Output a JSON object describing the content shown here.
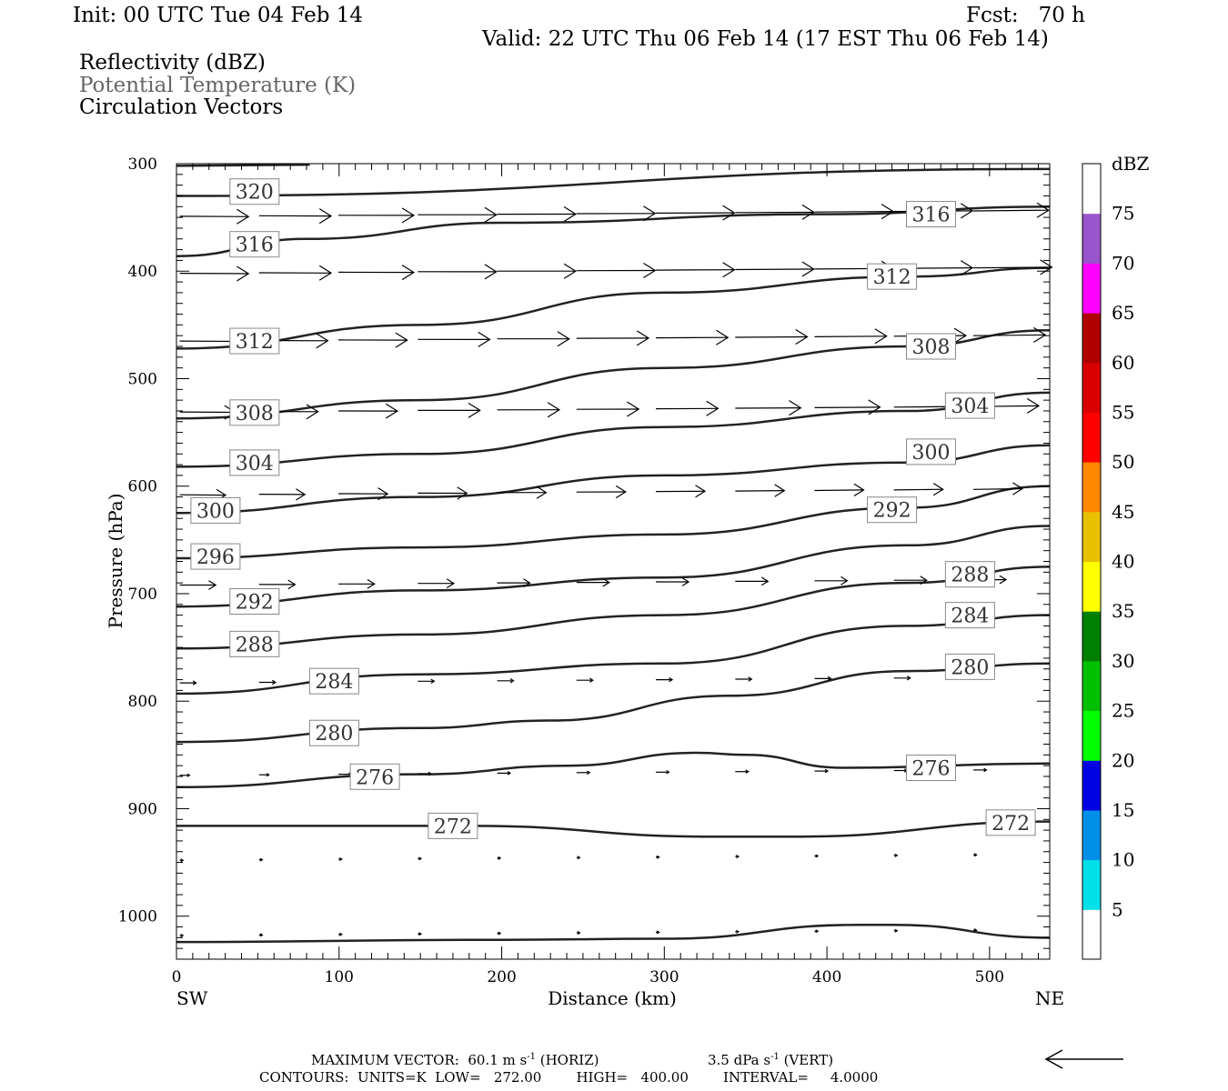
{
  "header": {
    "init": "Init: 00 UTC Tue 04 Feb 14",
    "fcst": "Fcst:   70 h",
    "valid": "Valid: 22 UTC Thu 06 Feb 14 (17 EST Thu 06 Feb 14)",
    "fields": [
      "Reflectivity (dBZ)",
      "Potential Temperature (K)",
      "Circulation Vectors"
    ]
  },
  "footer": {
    "max_vector": "MAXIMUM VECTOR:  60.1 m s",
    "horiz": " (HORIZ)",
    "vert_val": "3.5 dPa s",
    "vert": " (VERT)",
    "exp": "-1",
    "contours": "CONTOURS:  UNITS=K  LOW=   272.00        HIGH=   400.00        INTERVAL=     4.0000"
  },
  "chart_data": {
    "type": "contour",
    "xlabel": "Distance (km)",
    "ylabel": "Pressure (hPa)",
    "xlim": [
      0,
      537
    ],
    "ylim": [
      1040,
      300
    ],
    "x_ticks": [
      "0",
      "100",
      "200",
      "300",
      "400",
      "500"
    ],
    "y_ticks": [
      "300",
      "400",
      "500",
      "600",
      "700",
      "800",
      "900",
      "1000"
    ],
    "x_endpoints": {
      "left": "SW",
      "right": "NE"
    },
    "colorbar": {
      "unit": "dBZ",
      "levels": [
        "5",
        "10",
        "15",
        "20",
        "25",
        "30",
        "35",
        "40",
        "45",
        "50",
        "55",
        "60",
        "65",
        "70",
        "75"
      ],
      "colors": [
        "#ffffff",
        "#00e0e8",
        "#0090e8",
        "#0000e0",
        "#00ff00",
        "#00c000",
        "#008000",
        "#ffff00",
        "#e8c000",
        "#ff8800",
        "#ff0000",
        "#d80000",
        "#b00000",
        "#ff00ff",
        "#9955cc",
        "#ffffff"
      ]
    },
    "theta_contours": [
      {
        "value": 320,
        "points": [
          [
            0,
            330
          ],
          [
            537,
            305
          ]
        ]
      },
      {
        "value": 316,
        "points": [
          [
            0,
            386
          ],
          [
            80,
            370
          ],
          [
            200,
            355
          ],
          [
            400,
            347
          ],
          [
            537,
            340
          ]
        ]
      },
      {
        "value": 312,
        "points": [
          [
            0,
            472
          ],
          [
            150,
            450
          ],
          [
            300,
            420
          ],
          [
            450,
            405
          ],
          [
            537,
            397
          ]
        ]
      },
      {
        "value": 308,
        "points": [
          [
            0,
            537
          ],
          [
            150,
            520
          ],
          [
            300,
            490
          ],
          [
            450,
            470
          ],
          [
            537,
            455
          ]
        ]
      },
      {
        "value": 304,
        "points": [
          [
            0,
            582
          ],
          [
            150,
            570
          ],
          [
            300,
            545
          ],
          [
            450,
            530
          ],
          [
            537,
            513
          ]
        ]
      },
      {
        "value": 300,
        "points": [
          [
            0,
            625
          ],
          [
            150,
            610
          ],
          [
            300,
            590
          ],
          [
            450,
            578
          ],
          [
            537,
            562
          ]
        ]
      },
      {
        "value": 296,
        "points": [
          [
            0,
            667
          ],
          [
            150,
            657
          ],
          [
            300,
            645
          ],
          [
            450,
            620
          ],
          [
            537,
            600
          ]
        ]
      },
      {
        "value": 292,
        "points": [
          [
            0,
            712
          ],
          [
            150,
            697
          ],
          [
            300,
            685
          ],
          [
            450,
            655
          ],
          [
            537,
            637
          ]
        ]
      },
      {
        "value": 288,
        "points": [
          [
            0,
            751
          ],
          [
            150,
            738
          ],
          [
            300,
            720
          ],
          [
            450,
            690
          ],
          [
            537,
            675
          ]
        ]
      },
      {
        "value": 284,
        "points": [
          [
            0,
            793
          ],
          [
            150,
            775
          ],
          [
            300,
            765
          ],
          [
            450,
            730
          ],
          [
            537,
            720
          ]
        ]
      },
      {
        "value": 280,
        "points": [
          [
            0,
            838
          ],
          [
            150,
            825
          ],
          [
            230,
            818
          ],
          [
            340,
            795
          ],
          [
            450,
            772
          ],
          [
            537,
            765
          ]
        ]
      },
      {
        "value": 276,
        "points": [
          [
            0,
            880
          ],
          [
            150,
            868
          ],
          [
            240,
            860
          ],
          [
            320,
            848
          ],
          [
            350,
            850
          ],
          [
            410,
            862
          ],
          [
            537,
            858
          ]
        ]
      },
      {
        "value": 272,
        "points": [
          [
            0,
            916
          ],
          [
            180,
            916
          ],
          [
            330,
            926
          ],
          [
            380,
            926
          ],
          [
            537,
            912
          ]
        ]
      }
    ],
    "surface": [
      [
        0,
        1024
      ],
      [
        200,
        1022
      ],
      [
        300,
        1021
      ],
      [
        420,
        1008
      ],
      [
        440,
        1008
      ],
      [
        537,
        1020
      ]
    ],
    "max_vector": {
      "horiz_m_s": 60.1,
      "vert_dPa_s": 3.5
    }
  }
}
